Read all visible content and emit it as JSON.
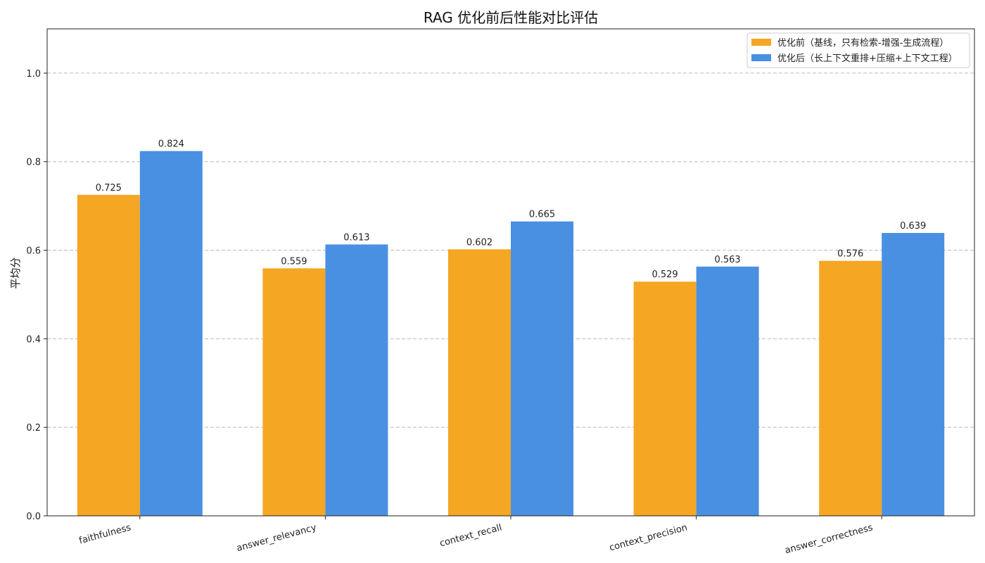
{
  "chart_data": {
    "type": "bar",
    "title": "RAG 优化前后性能对比评估",
    "xlabel": "",
    "ylabel": "平均分",
    "ylim": [
      0,
      1.1
    ],
    "yticks": [
      "0.0",
      "0.2",
      "0.4",
      "0.6",
      "0.8",
      "1.0"
    ],
    "grid": "y-dashed",
    "legend_position": "top-right",
    "categories": [
      "faithfulness",
      "answer_relevancy",
      "context_recall",
      "context_precision",
      "answer_correctness"
    ],
    "series": [
      {
        "name": "优化前（基线，只有检索-增强-生成流程）",
        "color": "#F5A623",
        "values": [
          0.725,
          0.559,
          0.602,
          0.529,
          0.576
        ],
        "labels": [
          "0.725",
          "0.559",
          "0.602",
          "0.529",
          "0.576"
        ]
      },
      {
        "name": "优化后（长上下文重排+压缩+上下文工程）",
        "color": "#4A90E2",
        "values": [
          0.824,
          0.613,
          0.665,
          0.563,
          0.639
        ],
        "labels": [
          "0.824",
          "0.613",
          "0.665",
          "0.563",
          "0.639"
        ]
      }
    ]
  }
}
